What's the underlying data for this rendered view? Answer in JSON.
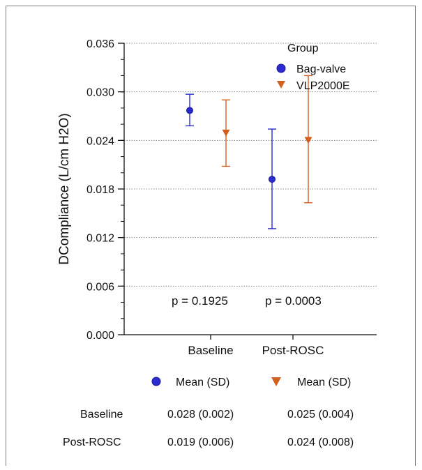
{
  "chart_data": {
    "type": "scatter",
    "ylabel": "DCompliance (L/cm H2O)",
    "ylim": [
      0,
      0.036
    ],
    "y_ticks": [
      "0.000",
      "0.006",
      "0.012",
      "0.018",
      "0.024",
      "0.030",
      "0.036"
    ],
    "y_tick_values": [
      0,
      0.006,
      0.012,
      0.018,
      0.024,
      0.03,
      0.036
    ],
    "categories": [
      "Baseline",
      "Post-ROSC"
    ],
    "grid": "horizontal dotted",
    "legend": {
      "title": "Group",
      "placement": "top-right"
    },
    "series": [
      {
        "name": "Bag-valve",
        "marker": "circle",
        "color": "#2b2bd0",
        "mean": [
          0.0277,
          0.0192
        ],
        "low": [
          0.0258,
          0.0131
        ],
        "high": [
          0.0297,
          0.0254
        ]
      },
      {
        "name": "VLP2000E",
        "marker": "triangle-down",
        "color": "#d2601f",
        "mean": [
          0.0249,
          0.024
        ],
        "low": [
          0.0208,
          0.0163
        ],
        "high": [
          0.029,
          0.032
        ]
      }
    ],
    "annotations": [
      "p = 0.1925",
      "p = 0.0003"
    ]
  },
  "summary_table": {
    "headers": [
      "Mean (SD)",
      "Mean (SD)"
    ],
    "rows": [
      {
        "label": "Baseline",
        "values": [
          "0.028 (0.002)",
          "0.025 (0.004)"
        ]
      },
      {
        "label": "Post-ROSC",
        "values": [
          "0.019 (0.006)",
          "0.024 (0.008)"
        ]
      }
    ]
  }
}
